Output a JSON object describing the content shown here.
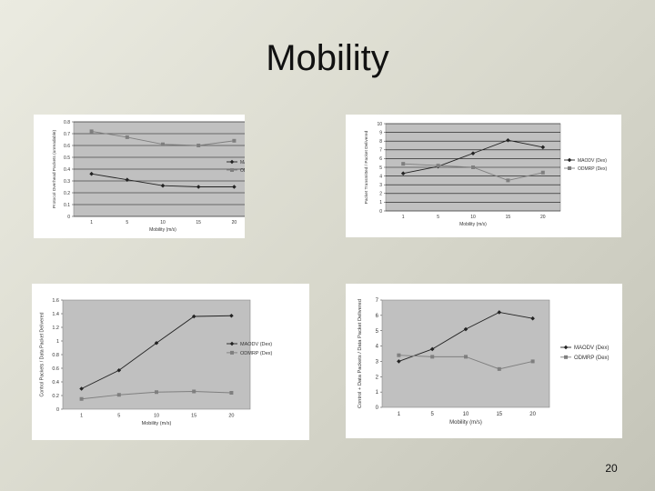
{
  "slide": {
    "title": "Mobility",
    "page_number": "20"
  },
  "colors": {
    "plot_bg": "#c0c0c0",
    "series_1": "#222222",
    "series_2": "#7f7f7f"
  },
  "chart_data": [
    {
      "type": "line",
      "x": [
        1,
        5,
        10,
        15,
        20
      ],
      "xlabel": "Mobility (m/s)",
      "ylabel": "Protocol Overhead Packets (unreadable)",
      "ylim": [
        0,
        0.8
      ],
      "yticks": [
        "0",
        "0.1",
        "0.2",
        "0.3",
        "0.4",
        "0.5",
        "0.6",
        "0.7",
        "0.8"
      ],
      "grid": "horizontal",
      "legend": "right",
      "series": [
        {
          "name": "MAODV (Dex)",
          "values": [
            0.36,
            0.31,
            0.26,
            0.25,
            0.25
          ]
        },
        {
          "name": "ODMRP (Dex)",
          "values": [
            0.72,
            0.67,
            0.61,
            0.6,
            0.64
          ]
        }
      ]
    },
    {
      "type": "line",
      "x": [
        1,
        5,
        10,
        15,
        20
      ],
      "xlabel": "Mobility (m/s)",
      "ylabel": "Packet Transmitted / Packet Delivered",
      "ylim": [
        0,
        10
      ],
      "yticks": [
        "0",
        "1",
        "2",
        "3",
        "4",
        "5",
        "6",
        "7",
        "8",
        "9",
        "10"
      ],
      "grid": "horizontal",
      "legend": "right",
      "series": [
        {
          "name": "MAODV (Dex)",
          "values": [
            4.3,
            5.1,
            6.6,
            8.1,
            7.3
          ]
        },
        {
          "name": "ODMRP (Dex)",
          "values": [
            5.4,
            5.2,
            5.0,
            3.5,
            4.4
          ]
        }
      ]
    },
    {
      "type": "line",
      "x": [
        1,
        5,
        10,
        15,
        20
      ],
      "xlabel": "Mobility (m/s)",
      "ylabel": "Control Packets / Data Packet Delivered",
      "ylim": [
        0,
        1.6
      ],
      "yticks": [
        "0",
        "0.2",
        "0.4",
        "0.6",
        "0.8",
        "1",
        "1.2",
        "1.4",
        "1.6"
      ],
      "grid": "none",
      "legend": "right",
      "series": [
        {
          "name": "MAODV (Dex)",
          "values": [
            0.3,
            0.57,
            0.97,
            1.36,
            1.37
          ]
        },
        {
          "name": "ODMRP (Dex)",
          "values": [
            0.15,
            0.21,
            0.25,
            0.26,
            0.24
          ]
        }
      ]
    },
    {
      "type": "line",
      "x": [
        1,
        5,
        10,
        15,
        20
      ],
      "xlabel": "Mobility (m/s)",
      "ylabel": "Control + Data Packets / Data Packet Delivered",
      "ylim": [
        0,
        7
      ],
      "yticks": [
        "0",
        "1",
        "2",
        "3",
        "4",
        "5",
        "6",
        "7"
      ],
      "grid": "none",
      "legend": "right",
      "series": [
        {
          "name": "MAODV (Dex)",
          "values": [
            3.0,
            3.8,
            5.1,
            6.2,
            5.8
          ]
        },
        {
          "name": "ODMRP (Dex)",
          "values": [
            3.4,
            3.3,
            3.3,
            2.5,
            3.0
          ]
        }
      ]
    }
  ]
}
